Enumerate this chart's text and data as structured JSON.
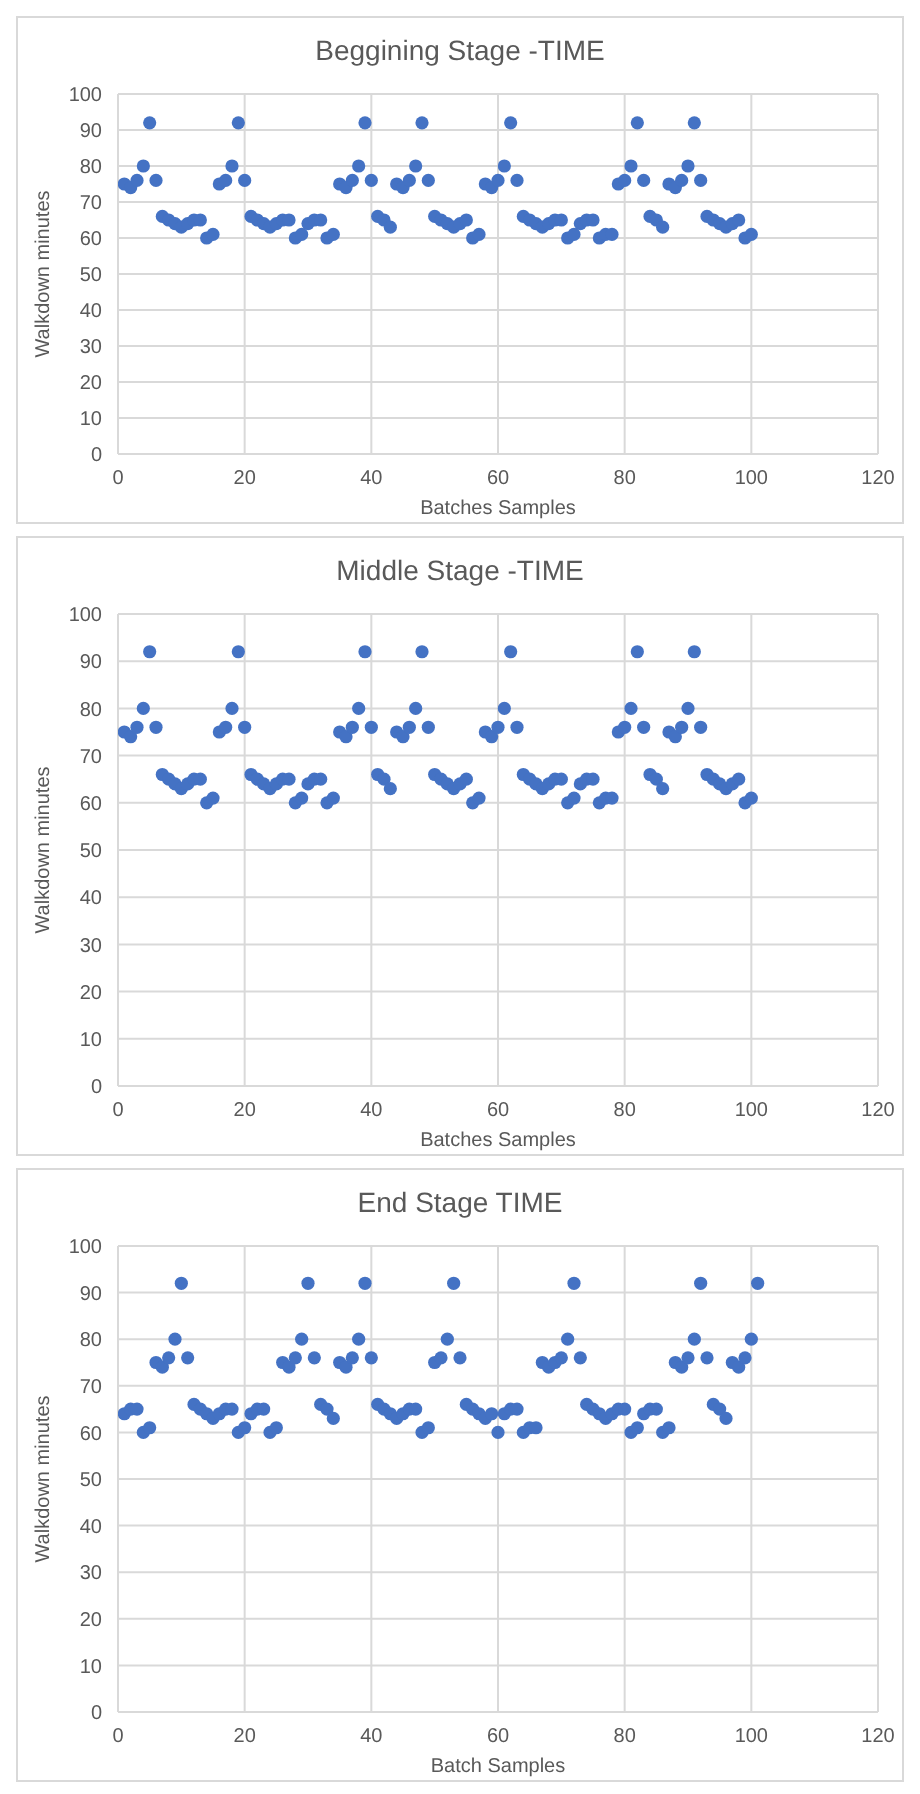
{
  "chart_data": [
    {
      "type": "scatter",
      "title": "Beggining Stage -TIME",
      "xlabel": "Batches Samples",
      "ylabel": "Walkdown minutes",
      "color": "#4472c4",
      "marker": "circle",
      "grid": true,
      "xlim": [
        0,
        120
      ],
      "xticks": [
        0,
        20,
        40,
        60,
        80,
        100,
        120
      ],
      "ylim": [
        0,
        100
      ],
      "yticks": [
        0,
        10,
        20,
        30,
        40,
        50,
        60,
        70,
        80,
        90,
        100
      ],
      "x": [
        1,
        2,
        3,
        4,
        5,
        6,
        7,
        8,
        9,
        10,
        11,
        12,
        13,
        14,
        15,
        16,
        17,
        18,
        19,
        20,
        21,
        22,
        23,
        24,
        25,
        26,
        27,
        28,
        29,
        30,
        31,
        32,
        33,
        34,
        35,
        36,
        37,
        38,
        39,
        40,
        41,
        42,
        43,
        44,
        45,
        46,
        47,
        48,
        49,
        50,
        51,
        52,
        53,
        54,
        55,
        56,
        57,
        58,
        59,
        60,
        61,
        62,
        63,
        64,
        65,
        66,
        67,
        68,
        69,
        70,
        71,
        72,
        73,
        74,
        75,
        76,
        77,
        78,
        79,
        80,
        81,
        82,
        83,
        84,
        85,
        86,
        87,
        88,
        89,
        90,
        91,
        92,
        93,
        94,
        95,
        96,
        97,
        98,
        99,
        100
      ],
      "values": [
        75,
        74,
        76,
        80,
        92,
        76,
        66,
        65,
        64,
        63,
        64,
        65,
        65,
        60,
        61,
        75,
        76,
        80,
        92,
        76,
        66,
        65,
        64,
        63,
        64,
        65,
        65,
        60,
        61,
        64,
        65,
        65,
        60,
        61,
        75,
        74,
        76,
        80,
        92,
        76,
        66,
        65,
        63,
        75,
        74,
        76,
        80,
        92,
        76,
        66,
        65,
        64,
        63,
        64,
        65,
        60,
        61,
        75,
        74,
        76,
        80,
        92,
        76,
        66,
        65,
        64,
        63,
        64,
        65,
        65,
        60,
        61,
        64,
        65,
        65,
        60,
        61,
        61,
        75,
        76,
        80,
        92,
        76,
        66,
        65,
        63,
        75,
        74,
        76,
        80,
        92,
        76,
        66,
        65,
        64,
        63,
        64,
        65,
        60,
        61
      ]
    },
    {
      "type": "scatter",
      "title": "Middle Stage -TIME",
      "xlabel": "Batches Samples",
      "ylabel": "Walkdown minutes",
      "color": "#4472c4",
      "marker": "circle",
      "grid": true,
      "xlim": [
        0,
        120
      ],
      "xticks": [
        0,
        20,
        40,
        60,
        80,
        100,
        120
      ],
      "ylim": [
        0,
        100
      ],
      "yticks": [
        0,
        10,
        20,
        30,
        40,
        50,
        60,
        70,
        80,
        90,
        100
      ],
      "x": [
        1,
        2,
        3,
        4,
        5,
        6,
        7,
        8,
        9,
        10,
        11,
        12,
        13,
        14,
        15,
        16,
        17,
        18,
        19,
        20,
        21,
        22,
        23,
        24,
        25,
        26,
        27,
        28,
        29,
        30,
        31,
        32,
        33,
        34,
        35,
        36,
        37,
        38,
        39,
        40,
        41,
        42,
        43,
        44,
        45,
        46,
        47,
        48,
        49,
        50,
        51,
        52,
        53,
        54,
        55,
        56,
        57,
        58,
        59,
        60,
        61,
        62,
        63,
        64,
        65,
        66,
        67,
        68,
        69,
        70,
        71,
        72,
        73,
        74,
        75,
        76,
        77,
        78,
        79,
        80,
        81,
        82,
        83,
        84,
        85,
        86,
        87,
        88,
        89,
        90,
        91,
        92,
        93,
        94,
        95,
        96,
        97,
        98,
        99,
        100
      ],
      "values": [
        75,
        74,
        76,
        80,
        92,
        76,
        66,
        65,
        64,
        63,
        64,
        65,
        65,
        60,
        61,
        75,
        76,
        80,
        92,
        76,
        66,
        65,
        64,
        63,
        64,
        65,
        65,
        60,
        61,
        64,
        65,
        65,
        60,
        61,
        75,
        74,
        76,
        80,
        92,
        76,
        66,
        65,
        63,
        75,
        74,
        76,
        80,
        92,
        76,
        66,
        65,
        64,
        63,
        64,
        65,
        60,
        61,
        75,
        74,
        76,
        80,
        92,
        76,
        66,
        65,
        64,
        63,
        64,
        65,
        65,
        60,
        61,
        64,
        65,
        65,
        60,
        61,
        61,
        75,
        76,
        80,
        92,
        76,
        66,
        65,
        63,
        75,
        74,
        76,
        80,
        92,
        76,
        66,
        65,
        64,
        63,
        64,
        65,
        60,
        61
      ]
    },
    {
      "type": "scatter",
      "title": "End Stage TIME",
      "xlabel": "Batch Samples",
      "ylabel": "Walkdown minutes",
      "color": "#4472c4",
      "marker": "circle",
      "grid": true,
      "xlim": [
        0,
        120
      ],
      "xticks": [
        0,
        20,
        40,
        60,
        80,
        100,
        120
      ],
      "ylim": [
        0,
        100
      ],
      "yticks": [
        0,
        10,
        20,
        30,
        40,
        50,
        60,
        70,
        80,
        90,
        100
      ],
      "x": [
        1,
        2,
        3,
        4,
        5,
        6,
        7,
        8,
        9,
        10,
        11,
        12,
        13,
        14,
        15,
        16,
        17,
        18,
        19,
        20,
        21,
        22,
        23,
        24,
        25,
        26,
        27,
        28,
        29,
        30,
        31,
        32,
        33,
        34,
        35,
        36,
        37,
        38,
        39,
        40,
        41,
        42,
        43,
        44,
        45,
        46,
        47,
        48,
        49,
        50,
        51,
        52,
        53,
        54,
        55,
        56,
        57,
        58,
        59,
        60,
        61,
        62,
        63,
        64,
        65,
        66,
        67,
        68,
        69,
        70,
        71,
        72,
        73,
        74,
        75,
        76,
        77,
        78,
        79,
        80,
        81,
        82,
        83,
        84,
        85,
        86,
        87,
        88,
        89,
        90,
        91,
        92,
        93,
        94,
        95,
        96,
        97,
        98,
        99,
        100,
        101
      ],
      "values": [
        64,
        65,
        65,
        60,
        61,
        75,
        74,
        76,
        80,
        92,
        76,
        66,
        65,
        64,
        63,
        64,
        65,
        65,
        60,
        61,
        64,
        65,
        65,
        60,
        61,
        75,
        74,
        76,
        80,
        92,
        76,
        66,
        65,
        63,
        75,
        74,
        76,
        80,
        92,
        76,
        66,
        65,
        64,
        63,
        64,
        65,
        65,
        60,
        61,
        75,
        76,
        80,
        92,
        76,
        66,
        65,
        64,
        63,
        64,
        60,
        64,
        65,
        65,
        60,
        61,
        61,
        75,
        74,
        75,
        76,
        80,
        92,
        76,
        66,
        65,
        64,
        63,
        64,
        65,
        65,
        60,
        61,
        64,
        65,
        65,
        60,
        61,
        75,
        74,
        76,
        80,
        92,
        76,
        66,
        65,
        63,
        75,
        74,
        76,
        80,
        92
      ]
    }
  ]
}
